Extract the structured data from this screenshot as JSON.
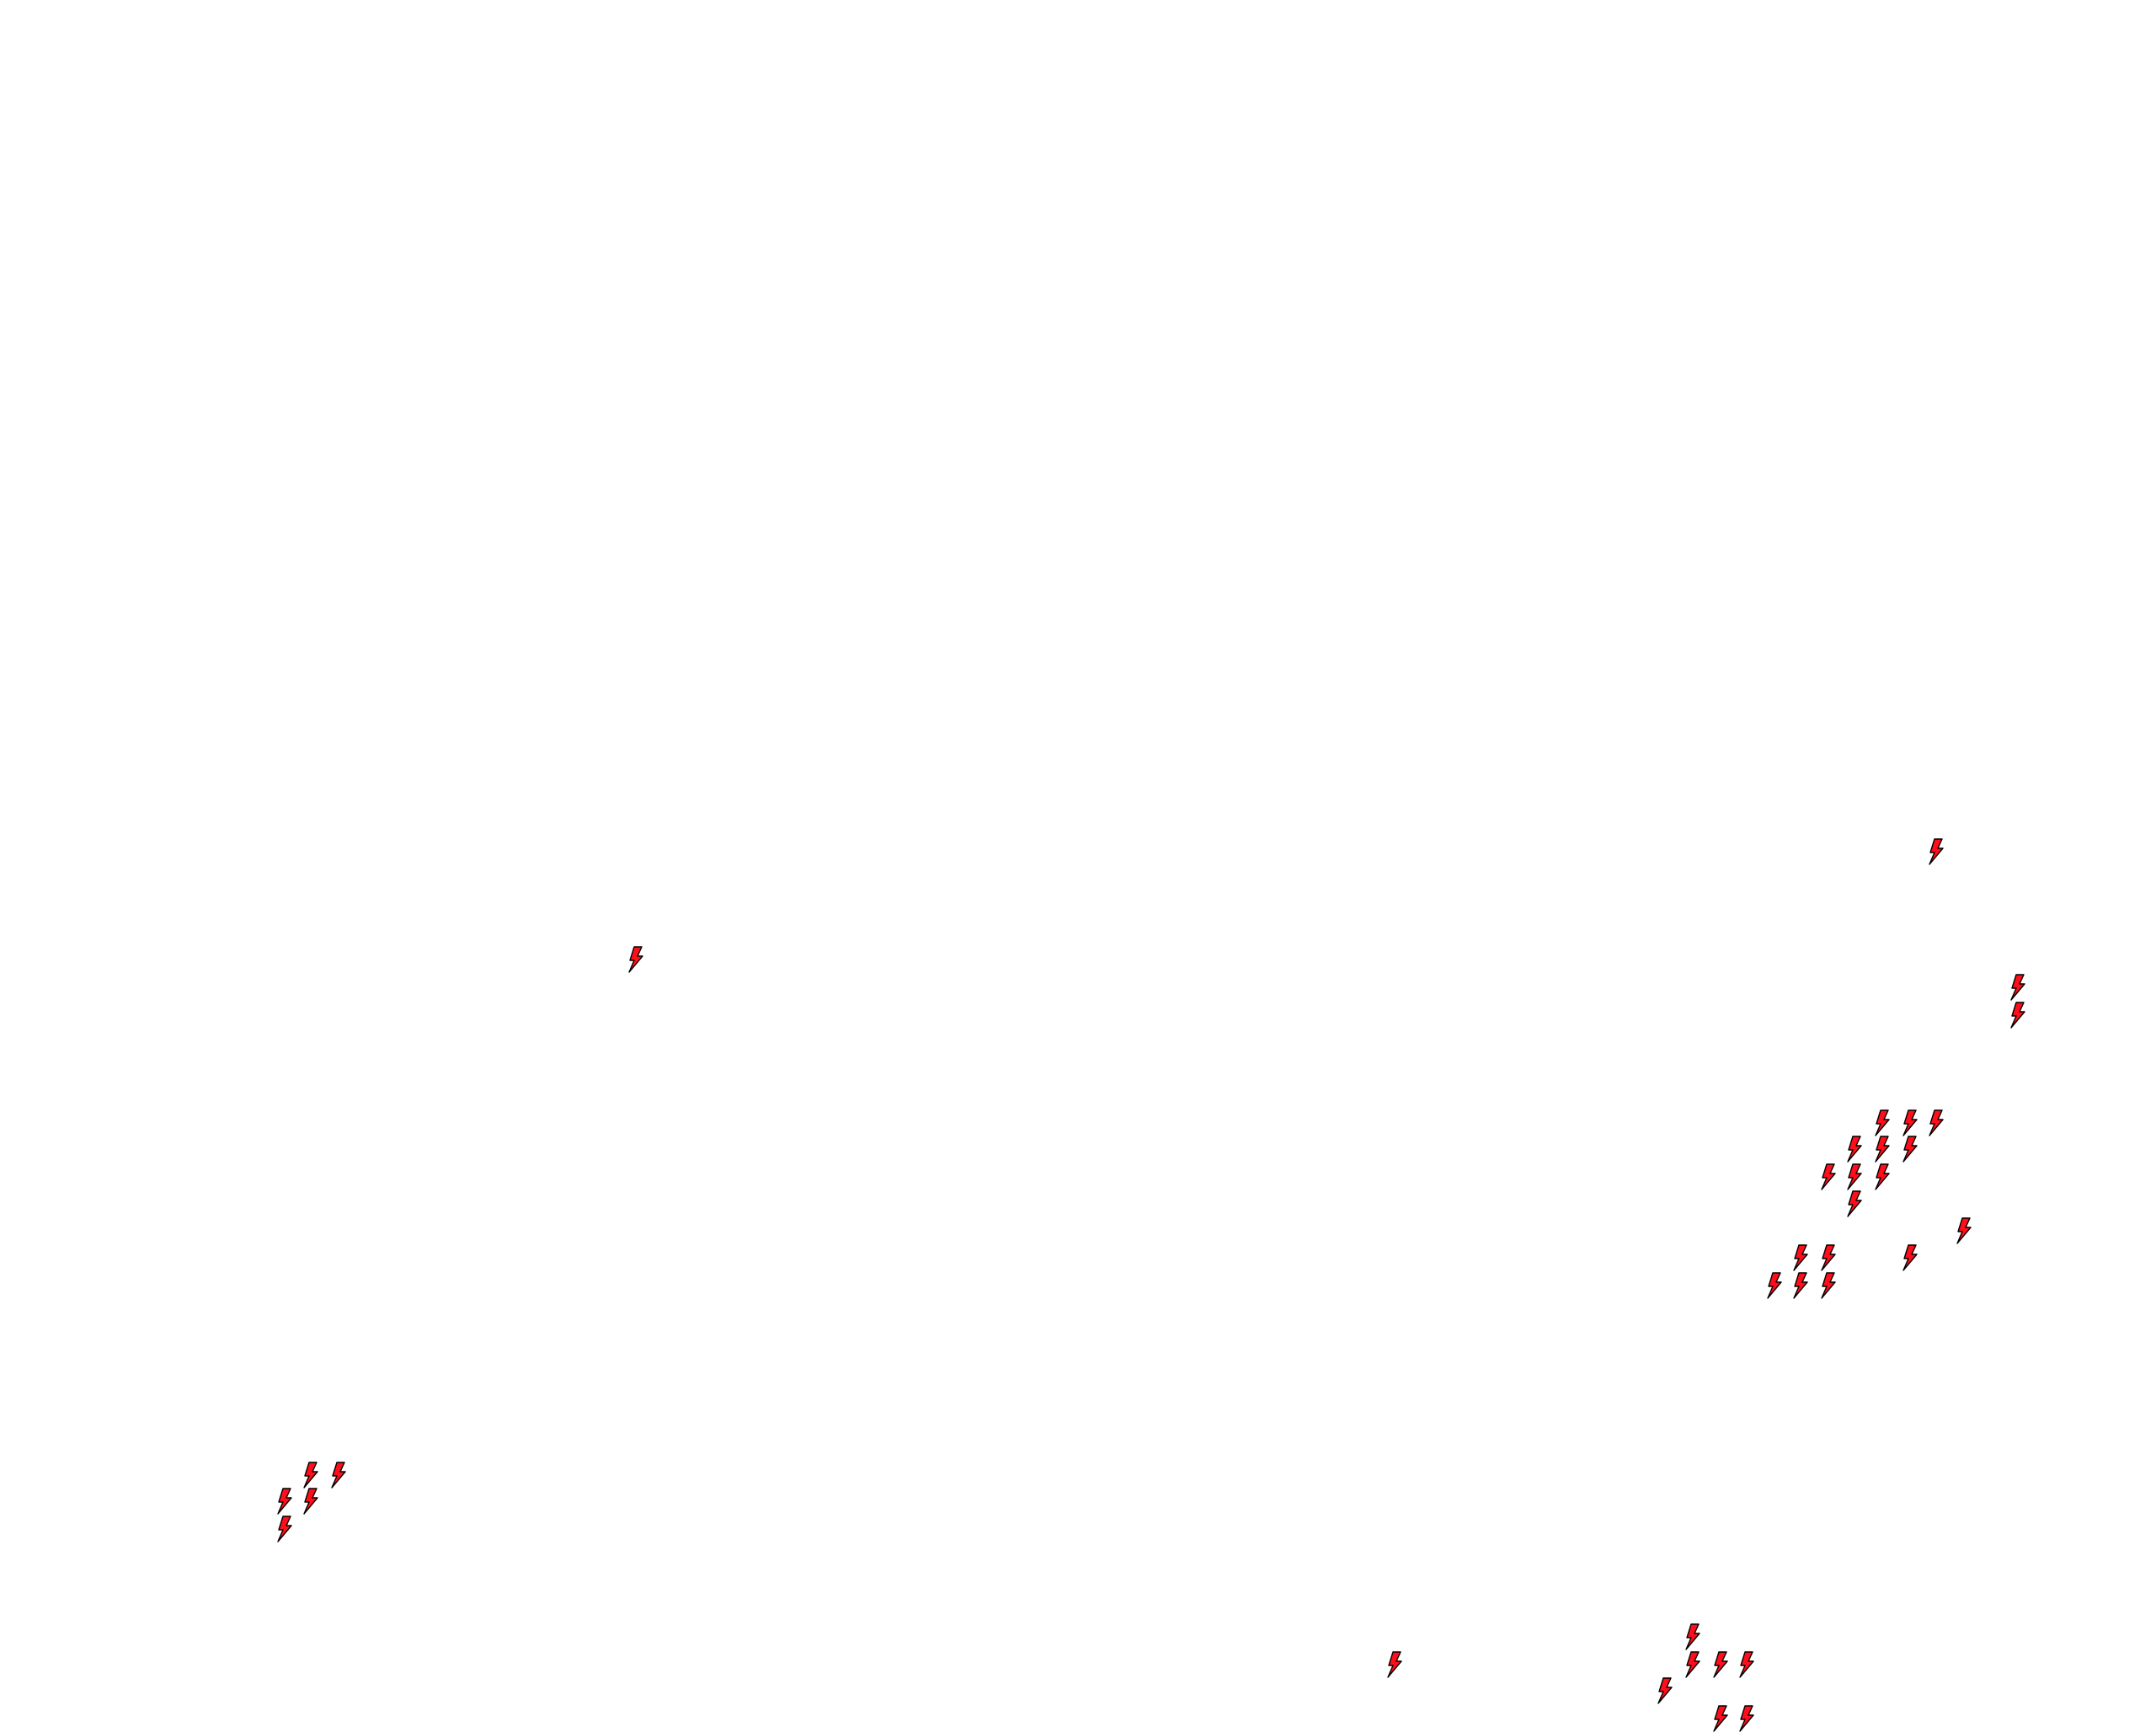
{
  "map": {
    "layer": "lightning-strikes",
    "background_color": "#ffffff",
    "marker": {
      "icon": "lightning-bolt-icon",
      "fill_color": "#ff0d1a",
      "outline_color": "#000000"
    },
    "strike_count": 34
  }
}
